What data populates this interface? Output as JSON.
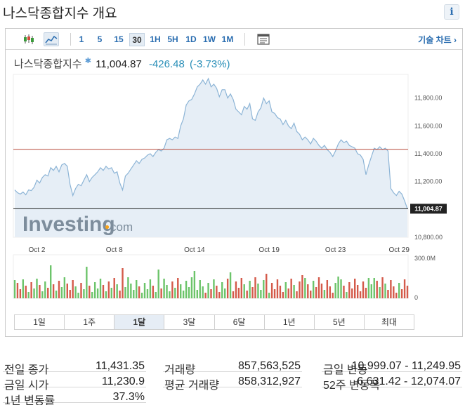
{
  "title": "나스닥종합지수 개요",
  "toolbar": {
    "periods": [
      "1",
      "5",
      "15",
      "30",
      "1H",
      "5H",
      "1D",
      "1W",
      "1M"
    ],
    "selected_period": "30",
    "tech_chart_label": "기술 차트 ›"
  },
  "quote": {
    "name": "나스닥종합지수",
    "price": "11,004.87",
    "change": "-426.48",
    "change_pct": "(-3.73%)"
  },
  "chart_data": {
    "type": "area",
    "x_ticks": [
      "Oct 2",
      "Oct 8",
      "Oct 14",
      "Oct 19",
      "Oct 23",
      "Oct 29"
    ],
    "y_ticks": [
      "11,800.00",
      "11,600.00",
      "11,400.00",
      "11,200.00",
      "10,800.00"
    ],
    "ylim": [
      10800,
      11970
    ],
    "last_price_label": "11,004.87",
    "previous_close": 11431.35,
    "series": [
      {
        "values": [
          11140,
          11120,
          11110,
          11125,
          11105,
          11140,
          11135,
          11160,
          11210,
          11190,
          11230,
          11250,
          11240,
          11300,
          11280,
          11310,
          11270,
          11320,
          11330,
          11310,
          11180,
          11100,
          11150,
          11180,
          11170,
          11210,
          11250,
          11200,
          11230,
          11250,
          11270,
          11300,
          11280,
          11310,
          11290,
          11300,
          11260,
          11270,
          11190,
          11140,
          11240,
          11260,
          11290,
          11320,
          11350,
          11330,
          11360,
          11370,
          11390,
          11400,
          11380,
          11410,
          11430,
          11420,
          11440,
          11500,
          11510,
          11500,
          11520,
          11510,
          11600,
          11650,
          11750,
          11780,
          11790,
          11830,
          11880,
          11900,
          11930,
          11900,
          11940,
          11880,
          11900,
          11870,
          11810,
          11860,
          11860,
          11800,
          11830,
          11790,
          11720,
          11700,
          11680,
          11740,
          11720,
          11760,
          11650,
          11640,
          11700,
          11730,
          11800,
          11760,
          11780,
          11700,
          11690,
          11660,
          11650,
          11610,
          11640,
          11600,
          11580,
          11620,
          11560,
          11540,
          11500,
          11520,
          11500,
          11470,
          11510,
          11490,
          11460,
          11440,
          11460,
          11430,
          11410,
          11380,
          11420,
          11470,
          11500,
          11480,
          11490,
          11460,
          11450,
          11440,
          11400,
          11390,
          11360,
          11250,
          11320,
          11380,
          11440,
          11430,
          11450,
          11430,
          11440,
          11420,
          11150,
          11120,
          11100,
          11130,
          11110,
          11060,
          11004.87
        ]
      }
    ],
    "volume_axis": [
      "300.0M",
      "0"
    ]
  },
  "period_tabs": [
    "1일",
    "1주",
    "1달",
    "3달",
    "6달",
    "1년",
    "5년",
    "최대"
  ],
  "selected_tab": "1달",
  "stats": [
    [
      {
        "label": "전일 종가",
        "value": "11,431.35"
      },
      {
        "label": "거래량",
        "value": "857,563,525"
      },
      {
        "label": "금일 변동",
        "value": "10,999.07 - 11,249.95"
      }
    ],
    [
      {
        "label": "금일 시가",
        "value": "11,230.9"
      },
      {
        "label": "평균 거래량",
        "value": "858,312,927"
      },
      {
        "label": "52주 변동폭",
        "value": "6,631.42 - 12,074.07"
      }
    ],
    [
      {
        "label": "1년 변동률",
        "value": "37.3%"
      }
    ]
  ],
  "colors": {
    "accent": "#2a6db0",
    "area": "#e6eef6",
    "line": "#8cb4d6",
    "up": "#6cc46a",
    "down": "#d45a4a"
  }
}
